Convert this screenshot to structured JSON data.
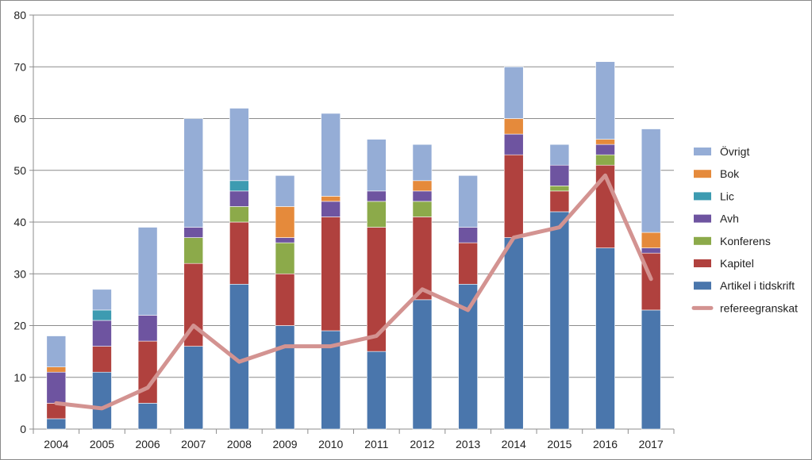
{
  "chart_data": {
    "type": "bar",
    "stacked": true,
    "title": "",
    "xlabel": "",
    "ylabel": "",
    "ylim": [
      0,
      80
    ],
    "yticks": [
      0,
      10,
      20,
      30,
      40,
      50,
      60,
      70,
      80
    ],
    "grid": true,
    "legend_position": "right",
    "categories": [
      "2004",
      "2005",
      "2006",
      "2007",
      "2008",
      "2009",
      "2010",
      "2011",
      "2012",
      "2013",
      "2014",
      "2015",
      "2016",
      "2017"
    ],
    "series": [
      {
        "name": "Artikel i tidskrift",
        "color": "#4A76AC",
        "values": [
          2,
          11,
          5,
          16,
          28,
          20,
          19,
          15,
          25,
          28,
          37,
          42,
          35,
          23
        ]
      },
      {
        "name": "Kapitel",
        "color": "#B0413E",
        "values": [
          3,
          5,
          12,
          16,
          12,
          10,
          22,
          24,
          16,
          8,
          16,
          4,
          16,
          11
        ]
      },
      {
        "name": "Konferens",
        "color": "#8CAA4A",
        "values": [
          0,
          0,
          0,
          5,
          3,
          6,
          0,
          5,
          3,
          0,
          0,
          1,
          2,
          0
        ]
      },
      {
        "name": "Avh",
        "color": "#6E54A0",
        "values": [
          6,
          5,
          5,
          2,
          3,
          1,
          3,
          2,
          2,
          3,
          4,
          4,
          2,
          1
        ]
      },
      {
        "name": "Lic",
        "color": "#3D9BB1",
        "values": [
          0,
          2,
          0,
          0,
          2,
          0,
          0,
          0,
          0,
          0,
          0,
          0,
          0,
          0
        ]
      },
      {
        "name": "Bok",
        "color": "#E58A3B",
        "values": [
          1,
          0,
          0,
          0,
          0,
          6,
          1,
          0,
          2,
          0,
          3,
          0,
          1,
          3
        ]
      },
      {
        "name": "Övrigt",
        "color": "#95ADD6",
        "values": [
          6,
          4,
          17,
          21,
          14,
          6,
          16,
          10,
          7,
          10,
          10,
          4,
          15,
          20
        ]
      }
    ],
    "line_series": {
      "name": "refereegranskat",
      "color": "#D39391",
      "values": [
        5,
        4,
        8,
        20,
        13,
        16,
        16,
        18,
        27,
        23,
        37,
        39,
        49,
        29
      ]
    }
  }
}
